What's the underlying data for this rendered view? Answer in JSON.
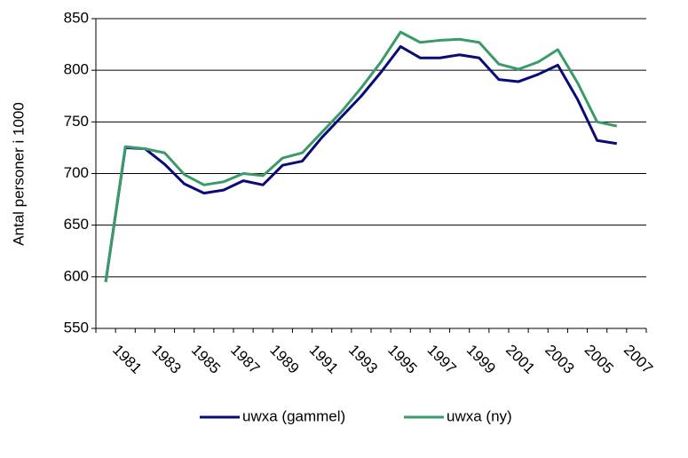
{
  "chart_data": {
    "type": "line",
    "y_label": "Antal personer i 1000",
    "categories": [
      null,
      "1981",
      null,
      "1983",
      null,
      "1985",
      null,
      "1987",
      null,
      "1989",
      null,
      "1991",
      null,
      "1993",
      null,
      "1995",
      null,
      "1997",
      null,
      "1999",
      null,
      "2001",
      null,
      "2003",
      null,
      "2005",
      null,
      "2007"
    ],
    "series": [
      {
        "name": "uwxa (gammel)",
        "color": "#0a0a78",
        "values": [
          595,
          725,
          724,
          709,
          690,
          681,
          684,
          693,
          689,
          708,
          712,
          735,
          755,
          775,
          798,
          823,
          812,
          812,
          815,
          812,
          791,
          789,
          796,
          805,
          772,
          732,
          729,
          null
        ]
      },
      {
        "name": "uwxa (ny)",
        "color": "#3a9a6a",
        "values": [
          595,
          726,
          724,
          720,
          699,
          689,
          692,
          700,
          698,
          715,
          720,
          740,
          760,
          783,
          808,
          837,
          827,
          829,
          830,
          827,
          806,
          801,
          808,
          820,
          788,
          750,
          746,
          null
        ]
      }
    ],
    "ylim": [
      550,
      850
    ],
    "yticks": [
      550,
      600,
      650,
      700,
      750,
      800,
      850
    ],
    "grid": true,
    "legend": "bottom"
  }
}
